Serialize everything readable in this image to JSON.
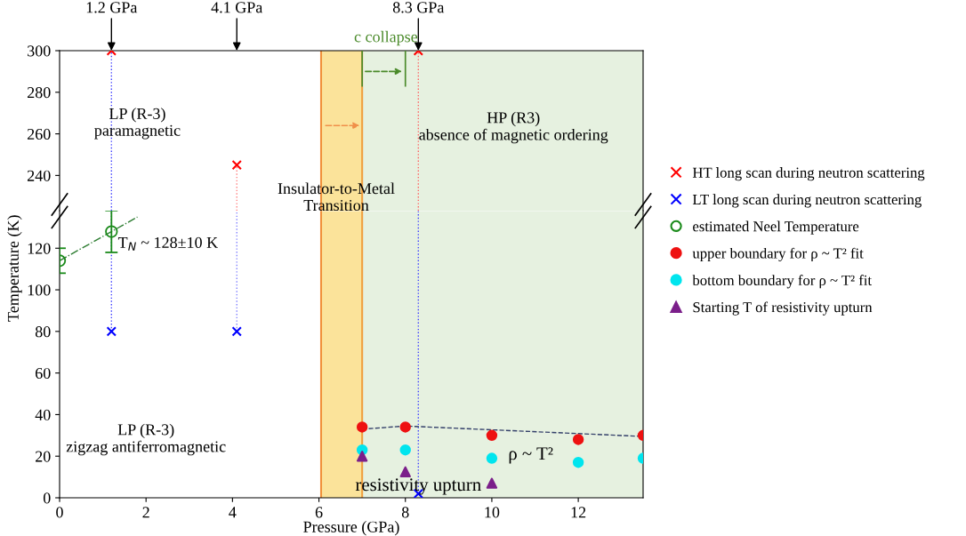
{
  "chart_data": [
    {
      "type": "scatter",
      "xlim": [
        0,
        13.5
      ],
      "ylim": [
        223,
        300
      ],
      "yticks": [
        240,
        260,
        280,
        300
      ],
      "tick_labels": "y",
      "legend": "right",
      "grid": false,
      "series": [
        {
          "type": "line",
          "color": "#4040ff",
          "line_style": "dotted",
          "x": [
            1.2,
            1.2
          ],
          "values": [
            223,
            300
          ]
        },
        {
          "type": "line",
          "color": "#ff6060",
          "line_style": "dotted",
          "x": [
            8.3,
            8.3
          ],
          "values": [
            223,
            300
          ]
        },
        {
          "type": "line",
          "color": "#ff8080",
          "line_style": "dotted",
          "x": [
            4.1,
            4.1
          ],
          "values": [
            223,
            245
          ]
        },
        {
          "name": "HT long scan during neutron scattering",
          "color": "#ff0000",
          "marker": "cross",
          "x": [
            1.2,
            4.1,
            8.3
          ],
          "values": [
            300,
            245,
            300
          ]
        }
      ],
      "ref_lines": [
        {
          "axis": "x",
          "value": 6.05,
          "color": "#f0903a"
        },
        {
          "axis": "x",
          "value": 7.0,
          "color": "#f0a040"
        }
      ],
      "bands": [
        {
          "axis": "x",
          "from": 6.05,
          "to": 7.0,
          "color": "#fbe39a"
        },
        {
          "axis": "x",
          "from": 7.0,
          "to": 13.5,
          "color": "#e6f1e0"
        }
      ],
      "annotations": [
        {
          "text": "1.2 GPa",
          "x": 1.2,
          "y": 300
        },
        "4.1 GPa",
        {
          "text": "8.3 GPa",
          "x": 8.3,
          "y": 300
        },
        {
          "text": "c collapse",
          "x": 7.0,
          "y": 290
        },
        "LP (R-3)\nparamagnetic",
        "HP (R3)\nabsence of magnetic ordering",
        "Insulator-to-Metal\nTransition"
      ]
    },
    {
      "type": "scatter",
      "xlim": [
        0,
        13.5
      ],
      "ylim": [
        0,
        138
      ],
      "xticks": [
        0,
        2,
        4,
        6,
        8,
        10,
        12
      ],
      "yticks": [
        0,
        20,
        40,
        60,
        80,
        100,
        120
      ],
      "xlabel": "Pressure (GPa)",
      "ylabel": "Temperature (K)",
      "legend": "right",
      "grid": false,
      "series": [
        {
          "type": "line",
          "color": "#4040ff",
          "line_style": "dotted",
          "x": [
            1.2,
            1.2
          ],
          "values": [
            80,
            138
          ]
        },
        {
          "type": "line",
          "color": "#4040ff",
          "line_style": "dotted",
          "x": [
            8.3,
            8.3
          ],
          "values": [
            2,
            138
          ]
        },
        {
          "type": "line",
          "color": "#8080ff",
          "line_style": "dotted",
          "x": [
            4.1,
            4.1
          ],
          "values": [
            80,
            138
          ]
        },
        {
          "type": "line",
          "color": "#2e7d32",
          "line_style": "dashdot",
          "x": [
            0,
            1.8
          ],
          "values": [
            114,
            135
          ]
        },
        {
          "type": "line",
          "color": "#34406a",
          "line_style": "dashed",
          "x": [
            7,
            8,
            13.5
          ],
          "values": [
            33,
            34.5,
            29.5
          ]
        },
        {
          "name": "LT long scan during neutron scattering",
          "color": "#0000ff",
          "marker": "cross",
          "x": [
            1.2,
            4.1,
            8.3
          ],
          "values": [
            80,
            80,
            2
          ]
        },
        {
          "name": "estimated Neel Temperature",
          "color": "#1a8a1a",
          "marker": "circle",
          "x": [
            0,
            1.2
          ],
          "values": [
            114,
            128
          ],
          "errors": [
            6,
            10
          ]
        },
        {
          "name": "upper boundary for ρ ~ T² fit",
          "color": "#ee1111",
          "marker": "circle",
          "x": [
            7,
            8,
            10,
            12,
            13.5
          ],
          "values": [
            34,
            34,
            30,
            28,
            30
          ]
        },
        {
          "name": "bottom boundary for ρ ~ T² fit",
          "color": "#00e5ee",
          "marker": "circle",
          "x": [
            7,
            8,
            10,
            12,
            13.5
          ],
          "values": [
            23,
            23,
            19,
            17,
            19
          ]
        },
        {
          "name": "Starting T of resistivity upturn",
          "color": "#7b1f8a",
          "marker": "triangle",
          "x": [
            7,
            8,
            10
          ],
          "values": [
            20,
            12.5,
            7
          ]
        }
      ],
      "ref_lines": [
        {
          "axis": "x",
          "value": 6.05,
          "color": "#f0903a"
        },
        {
          "axis": "x",
          "value": 7.0,
          "color": "#f0a040"
        }
      ],
      "bands": [
        {
          "axis": "x",
          "from": 6.05,
          "to": 7.0,
          "color": "#fbe39a"
        },
        {
          "axis": "x",
          "from": 7.0,
          "to": 13.5,
          "color": "#e6f1e0"
        }
      ],
      "annotations": [
        "T$_{N}$ ~ 128±10 K",
        "LP (R-3)\nzigzag antiferromagnetic",
        "ρ ~ T²",
        "resistivity upturn"
      ]
    }
  ]
}
